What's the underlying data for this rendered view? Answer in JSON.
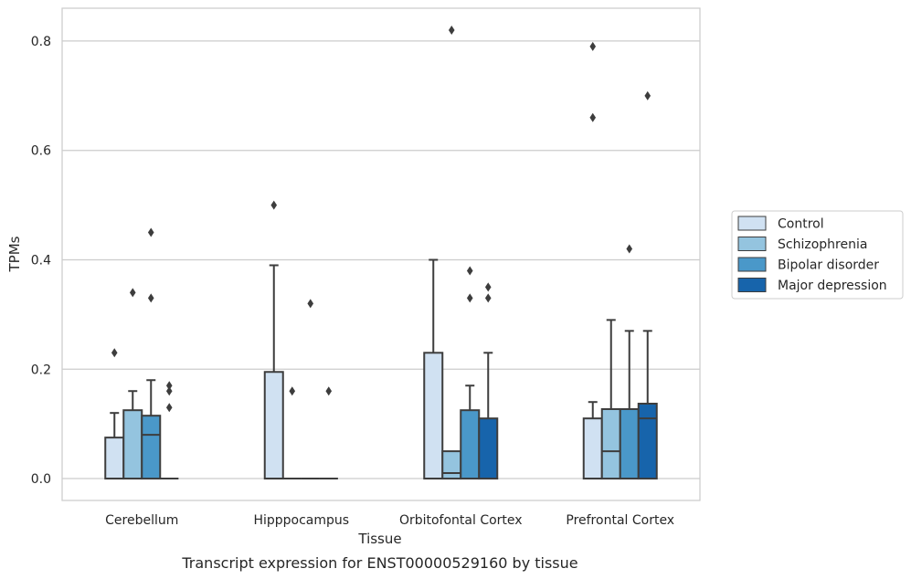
{
  "caption": "Transcript expression for ENST00000529160 by tissue",
  "chart_data": {
    "type": "box",
    "xlabel": "Tissue",
    "ylabel": "TPMs",
    "ylim": [
      -0.04,
      0.86
    ],
    "yticks": [
      0.0,
      0.2,
      0.4,
      0.6,
      0.8
    ],
    "ytick_labels": [
      "0.0",
      "0.2",
      "0.4",
      "0.6",
      "0.8"
    ],
    "grid": "horizontal",
    "legend_position": "right",
    "categories": [
      "Cerebellum",
      "Hipppocampus",
      "Orbitofontal Cortex",
      "Prefrontal Cortex"
    ],
    "series": [
      {
        "name": "Control",
        "color": "#d0e1f2",
        "boxes": [
          {
            "q1": 0.0,
            "median": 0.0,
            "q3": 0.075,
            "whisker_low": 0.0,
            "whisker_high": 0.12,
            "outliers": [
              0.23
            ]
          },
          {
            "q1": 0.0,
            "median": 0.0,
            "q3": 0.195,
            "whisker_low": 0.0,
            "whisker_high": 0.39,
            "outliers": [
              0.5
            ]
          },
          {
            "q1": 0.0,
            "median": 0.0,
            "q3": 0.23,
            "whisker_low": 0.0,
            "whisker_high": 0.4,
            "outliers": []
          },
          {
            "q1": 0.0,
            "median": 0.0,
            "q3": 0.11,
            "whisker_low": 0.0,
            "whisker_high": 0.14,
            "outliers": [
              0.79,
              0.66
            ]
          }
        ]
      },
      {
        "name": "Schizophrenia",
        "color": "#94c4df",
        "boxes": [
          {
            "q1": 0.0,
            "median": 0.0,
            "q3": 0.125,
            "whisker_low": 0.0,
            "whisker_high": 0.16,
            "outliers": [
              0.34
            ]
          },
          {
            "q1": 0.0,
            "median": 0.0,
            "q3": 0.0,
            "whisker_low": 0.0,
            "whisker_high": 0.0,
            "outliers": [
              0.16
            ]
          },
          {
            "q1": 0.0,
            "median": 0.01,
            "q3": 0.05,
            "whisker_low": 0.0,
            "whisker_high": 0.05,
            "outliers": [
              0.82
            ]
          },
          {
            "q1": 0.0,
            "median": 0.05,
            "q3": 0.127,
            "whisker_low": 0.0,
            "whisker_high": 0.29,
            "outliers": []
          }
        ]
      },
      {
        "name": "Bipolar disorder",
        "color": "#4a98c9",
        "boxes": [
          {
            "q1": 0.0,
            "median": 0.08,
            "q3": 0.115,
            "whisker_low": 0.0,
            "whisker_high": 0.18,
            "outliers": [
              0.45,
              0.33
            ]
          },
          {
            "q1": 0.0,
            "median": 0.0,
            "q3": 0.0,
            "whisker_low": 0.0,
            "whisker_high": 0.0,
            "outliers": [
              0.32
            ]
          },
          {
            "q1": 0.0,
            "median": 0.0,
            "q3": 0.125,
            "whisker_low": 0.0,
            "whisker_high": 0.17,
            "outliers": [
              0.38,
              0.33
            ]
          },
          {
            "q1": 0.0,
            "median": 0.0,
            "q3": 0.127,
            "whisker_low": 0.0,
            "whisker_high": 0.27,
            "outliers": [
              0.42
            ]
          }
        ]
      },
      {
        "name": "Major depression",
        "color": "#1764ab",
        "boxes": [
          {
            "q1": 0.0,
            "median": 0.0,
            "q3": 0.0,
            "whisker_low": 0.0,
            "whisker_high": 0.0,
            "outliers": [
              0.17,
              0.16,
              0.13
            ]
          },
          {
            "q1": 0.0,
            "median": 0.0,
            "q3": 0.0,
            "whisker_low": 0.0,
            "whisker_high": 0.0,
            "outliers": [
              0.16
            ]
          },
          {
            "q1": 0.0,
            "median": 0.0,
            "q3": 0.11,
            "whisker_low": 0.0,
            "whisker_high": 0.23,
            "outliers": [
              0.35,
              0.33
            ]
          },
          {
            "q1": 0.0,
            "median": 0.11,
            "q3": 0.137,
            "whisker_low": 0.0,
            "whisker_high": 0.27,
            "outliers": [
              0.7
            ]
          }
        ]
      }
    ]
  }
}
